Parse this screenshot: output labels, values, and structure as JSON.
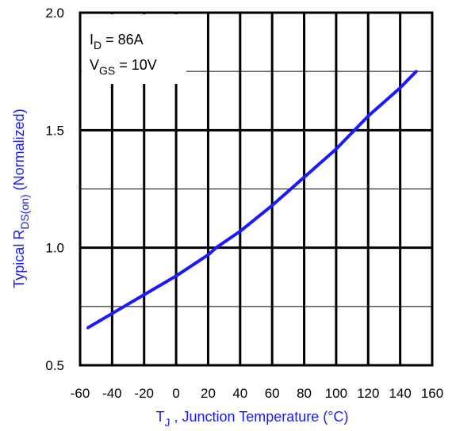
{
  "chart_data": {
    "type": "line",
    "xlabel": {
      "main": "T",
      "sub": "J",
      "rest": " , Junction Temperature (°C)"
    },
    "ylabel": {
      "main": "Typical R",
      "sub": "DS(on)",
      "rest": "  (Normalized)"
    },
    "xlim": [
      -60,
      160
    ],
    "ylim": [
      0.5,
      2.0
    ],
    "xticks": [
      -60,
      -40,
      -20,
      0,
      20,
      40,
      60,
      80,
      100,
      120,
      140,
      160
    ],
    "yticks": [
      "0.5",
      "1.0",
      "1.5",
      "2.0"
    ],
    "grid": true,
    "annotations": [
      {
        "main": "I",
        "sub": "D",
        "rest": " = 86A"
      },
      {
        "main": "V",
        "sub": "GS",
        "rest": " = 10V"
      }
    ],
    "series": [
      {
        "color": "#1a1aff",
        "x": [
          -55,
          -40,
          -20,
          0,
          20,
          25,
          40,
          60,
          80,
          100,
          120,
          140,
          150
        ],
        "y": [
          0.66,
          0.72,
          0.8,
          0.88,
          0.97,
          1.0,
          1.07,
          1.18,
          1.3,
          1.42,
          1.56,
          1.68,
          1.75
        ]
      }
    ]
  }
}
